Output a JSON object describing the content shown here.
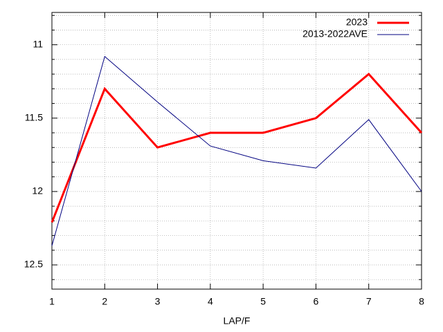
{
  "chart_data": {
    "type": "line",
    "x_label": "LAP/F",
    "x": [
      1,
      2,
      3,
      4,
      5,
      6,
      7,
      8
    ],
    "series": [
      {
        "name": "2023",
        "color": "#ff0000",
        "width": 3,
        "values": [
          12.21,
          11.3,
          11.7,
          11.6,
          11.6,
          11.5,
          11.2,
          11.6
        ]
      },
      {
        "name": "2013-2022AVE",
        "color": "#000080",
        "width": 1,
        "values": [
          12.37,
          11.08,
          11.39,
          11.69,
          11.79,
          11.84,
          11.51,
          12.0
        ]
      }
    ],
    "xlim": [
      1,
      8
    ],
    "xticks": [
      1,
      2,
      3,
      4,
      5,
      6,
      7,
      8
    ],
    "ylim": [
      10.78,
      12.665
    ],
    "yticks": [
      11,
      11.5,
      12,
      12.5
    ],
    "y_minor_ticks": [
      10.8,
      10.9,
      11.1,
      11.2,
      11.3,
      11.4,
      11.6,
      11.7,
      11.8,
      11.9,
      12.1,
      12.2,
      12.3,
      12.4,
      12.6
    ],
    "y_reversed": true,
    "grid": true,
    "legend": "top-right"
  }
}
